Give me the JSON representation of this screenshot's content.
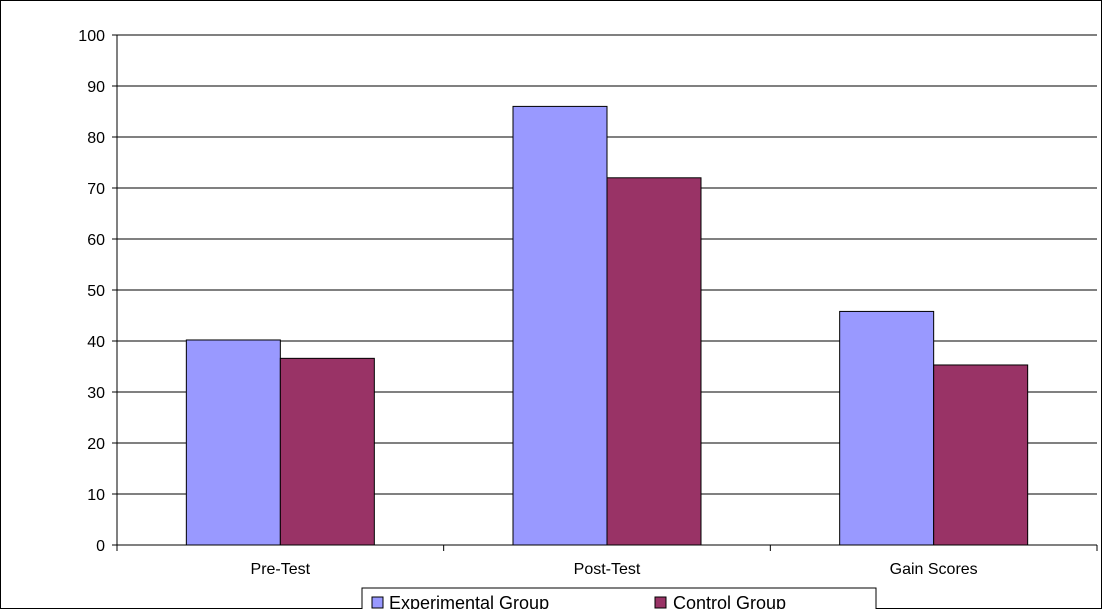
{
  "chart_data": {
    "type": "bar",
    "categories": [
      "Pre-Test",
      "Post-Test",
      "Gain Scores"
    ],
    "series": [
      {
        "name": "Experimental Group",
        "values": [
          40.2,
          86.0,
          45.8
        ],
        "color": "#9999ff"
      },
      {
        "name": "Control Group",
        "values": [
          36.6,
          72.0,
          35.3
        ],
        "color": "#993366"
      }
    ],
    "ylim": [
      0,
      100
    ],
    "yticks": [
      "0",
      "10",
      "20",
      "30",
      "40",
      "50",
      "60",
      "70",
      "80",
      "90",
      "100"
    ],
    "grid": true,
    "legend": "bottom",
    "title": "",
    "xlabel": "",
    "ylabel": ""
  }
}
